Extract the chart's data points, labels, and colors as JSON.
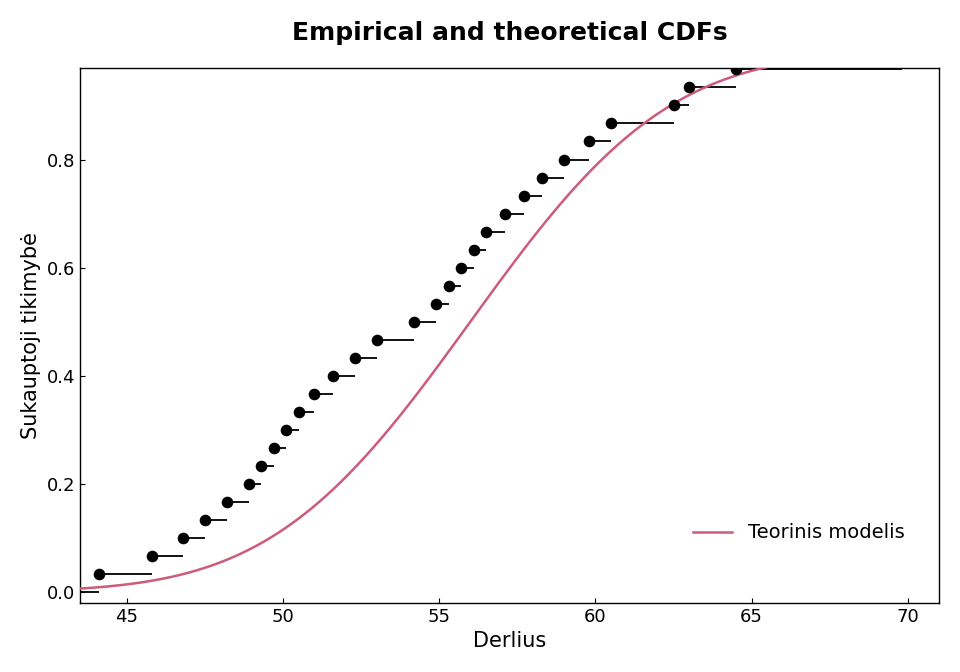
{
  "title": "Empirical and theoretical CDFs",
  "xlabel": "Derlius",
  "ylabel": "Sukauptoji tikimybė",
  "xlim": [
    43.5,
    71.0
  ],
  "ylim": [
    -0.02,
    0.97
  ],
  "xticks": [
    45,
    50,
    55,
    60,
    65,
    70
  ],
  "yticks": [
    0.0,
    0.2,
    0.4,
    0.6,
    0.8
  ],
  "mean": 56.0,
  "sd": 5.0,
  "theoretical_color": "#cd5c7a",
  "empirical_dot_color": "#000000",
  "step_color": "#000000",
  "legend_label": "Teorinis modelis",
  "title_fontsize": 18,
  "label_fontsize": 15,
  "tick_fontsize": 13,
  "legend_fontsize": 14,
  "background_color": "#ffffff",
  "data_points": [
    44.1,
    45.8,
    46.8,
    47.5,
    48.2,
    48.9,
    49.3,
    49.7,
    50.1,
    50.5,
    51.0,
    51.6,
    52.3,
    53.0,
    54.2,
    54.9,
    55.3,
    55.7,
    56.1,
    56.5,
    57.1,
    57.7,
    58.3,
    59.0,
    59.8,
    60.5,
    62.5,
    63.0,
    64.5,
    69.8
  ]
}
